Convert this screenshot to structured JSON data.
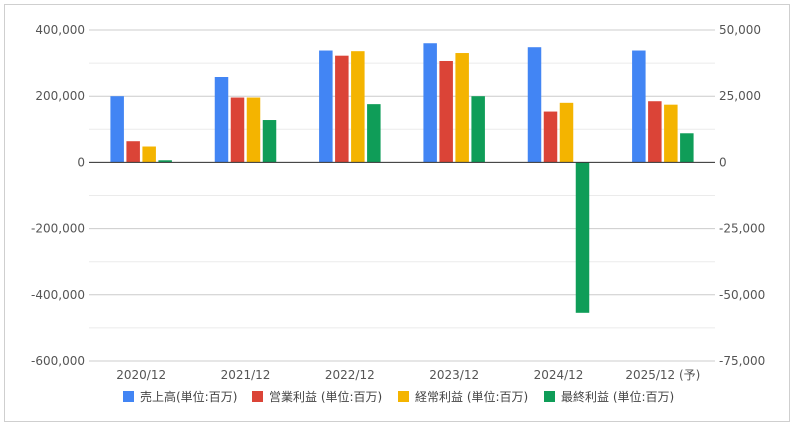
{
  "chart_data": {
    "type": "bar",
    "categories": [
      "2020/12",
      "2021/12",
      "2022/12",
      "2023/12",
      "2024/12",
      "2025/12 (予)"
    ],
    "series": [
      {
        "name": "売上高(単位:百万)",
        "axis": "left",
        "color": "#4285F4",
        "values": [
          200000,
          258000,
          338000,
          360000,
          348000,
          338000
        ]
      },
      {
        "name": "営業利益 (単位:百万)",
        "axis": "right",
        "color": "#DB4437",
        "values": [
          8000,
          24500,
          40300,
          38300,
          19200,
          23100
        ]
      },
      {
        "name": "経常利益 (単位:百万)",
        "axis": "right",
        "color": "#F4B400",
        "values": [
          6000,
          24500,
          42000,
          41300,
          22500,
          21800
        ]
      },
      {
        "name": "最終利益 (単位:百万)",
        "axis": "right",
        "color": "#0F9D58",
        "values": [
          800,
          16000,
          22000,
          25000,
          -56800,
          11000
        ]
      }
    ],
    "y_left": {
      "min": -600000,
      "max": 400000,
      "ticks": [
        "400,000",
        "200,000",
        "0",
        "-200,000",
        "-400,000",
        "-600,000"
      ]
    },
    "y_right": {
      "min": -75000,
      "max": 50000,
      "ticks": [
        "50,000",
        "25,000",
        "0",
        "-25,000",
        "-50,000",
        "-75,000"
      ]
    },
    "legend_position": "bottom",
    "grid": true
  }
}
